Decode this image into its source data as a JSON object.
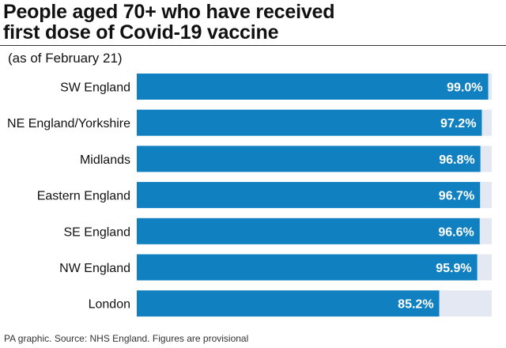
{
  "chart_data": {
    "type": "bar",
    "orientation": "horizontal",
    "title": [
      "People aged 70+ who have received",
      "first dose of Covid-19 vaccine"
    ],
    "subtitle": "(as of February 21)",
    "categories": [
      "SW England",
      "NE England/Yorkshire",
      "Midlands",
      "Eastern England",
      "SE England",
      "NW England",
      "London"
    ],
    "values": [
      99.0,
      97.2,
      96.8,
      96.7,
      96.6,
      95.9,
      85.2
    ],
    "value_labels": [
      "99.0%",
      "97.2%",
      "96.8%",
      "96.7%",
      "96.6%",
      "95.9%",
      "85.2%"
    ],
    "xlim": [
      0,
      100
    ],
    "grid": false,
    "legend": "none",
    "colors": {
      "bar": "#1180c0",
      "track": "#e4e8f2"
    }
  },
  "footer": "PA graphic. Source: NHS England. Figures are provisional"
}
